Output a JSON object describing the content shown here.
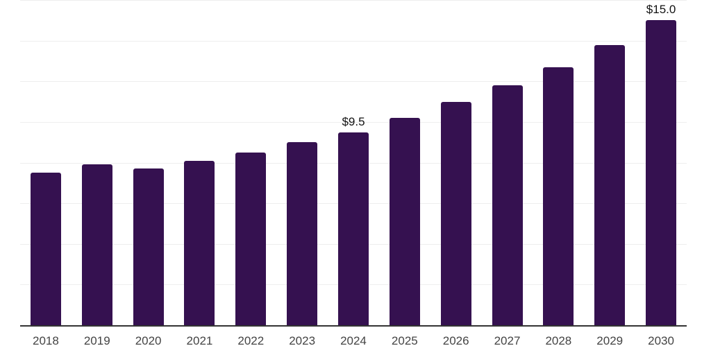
{
  "chart_data": {
    "type": "bar",
    "title": "",
    "categories": [
      "2018",
      "2019",
      "2020",
      "2021",
      "2022",
      "2023",
      "2024",
      "2025",
      "2026",
      "2027",
      "2028",
      "2029",
      "2030"
    ],
    "values": [
      7.5,
      7.9,
      7.7,
      8.1,
      8.5,
      9.0,
      9.5,
      10.2,
      11.0,
      11.8,
      12.7,
      13.8,
      15.0
    ],
    "data_labels": [
      "",
      "",
      "",
      "",
      "",
      "",
      "$9.5",
      "",
      "",
      "",
      "",
      "",
      "$15.0"
    ],
    "xlabel": "",
    "ylabel": "",
    "ylim": [
      0,
      16
    ],
    "gridline_step": 2,
    "grid": "horizontal",
    "legend": "none",
    "colors": {
      "bar": "#351150",
      "gridline": "#eeeeee",
      "axis_line": "#333333",
      "tick_label": "#444444",
      "data_label": "#111111",
      "background": "#ffffff"
    }
  }
}
